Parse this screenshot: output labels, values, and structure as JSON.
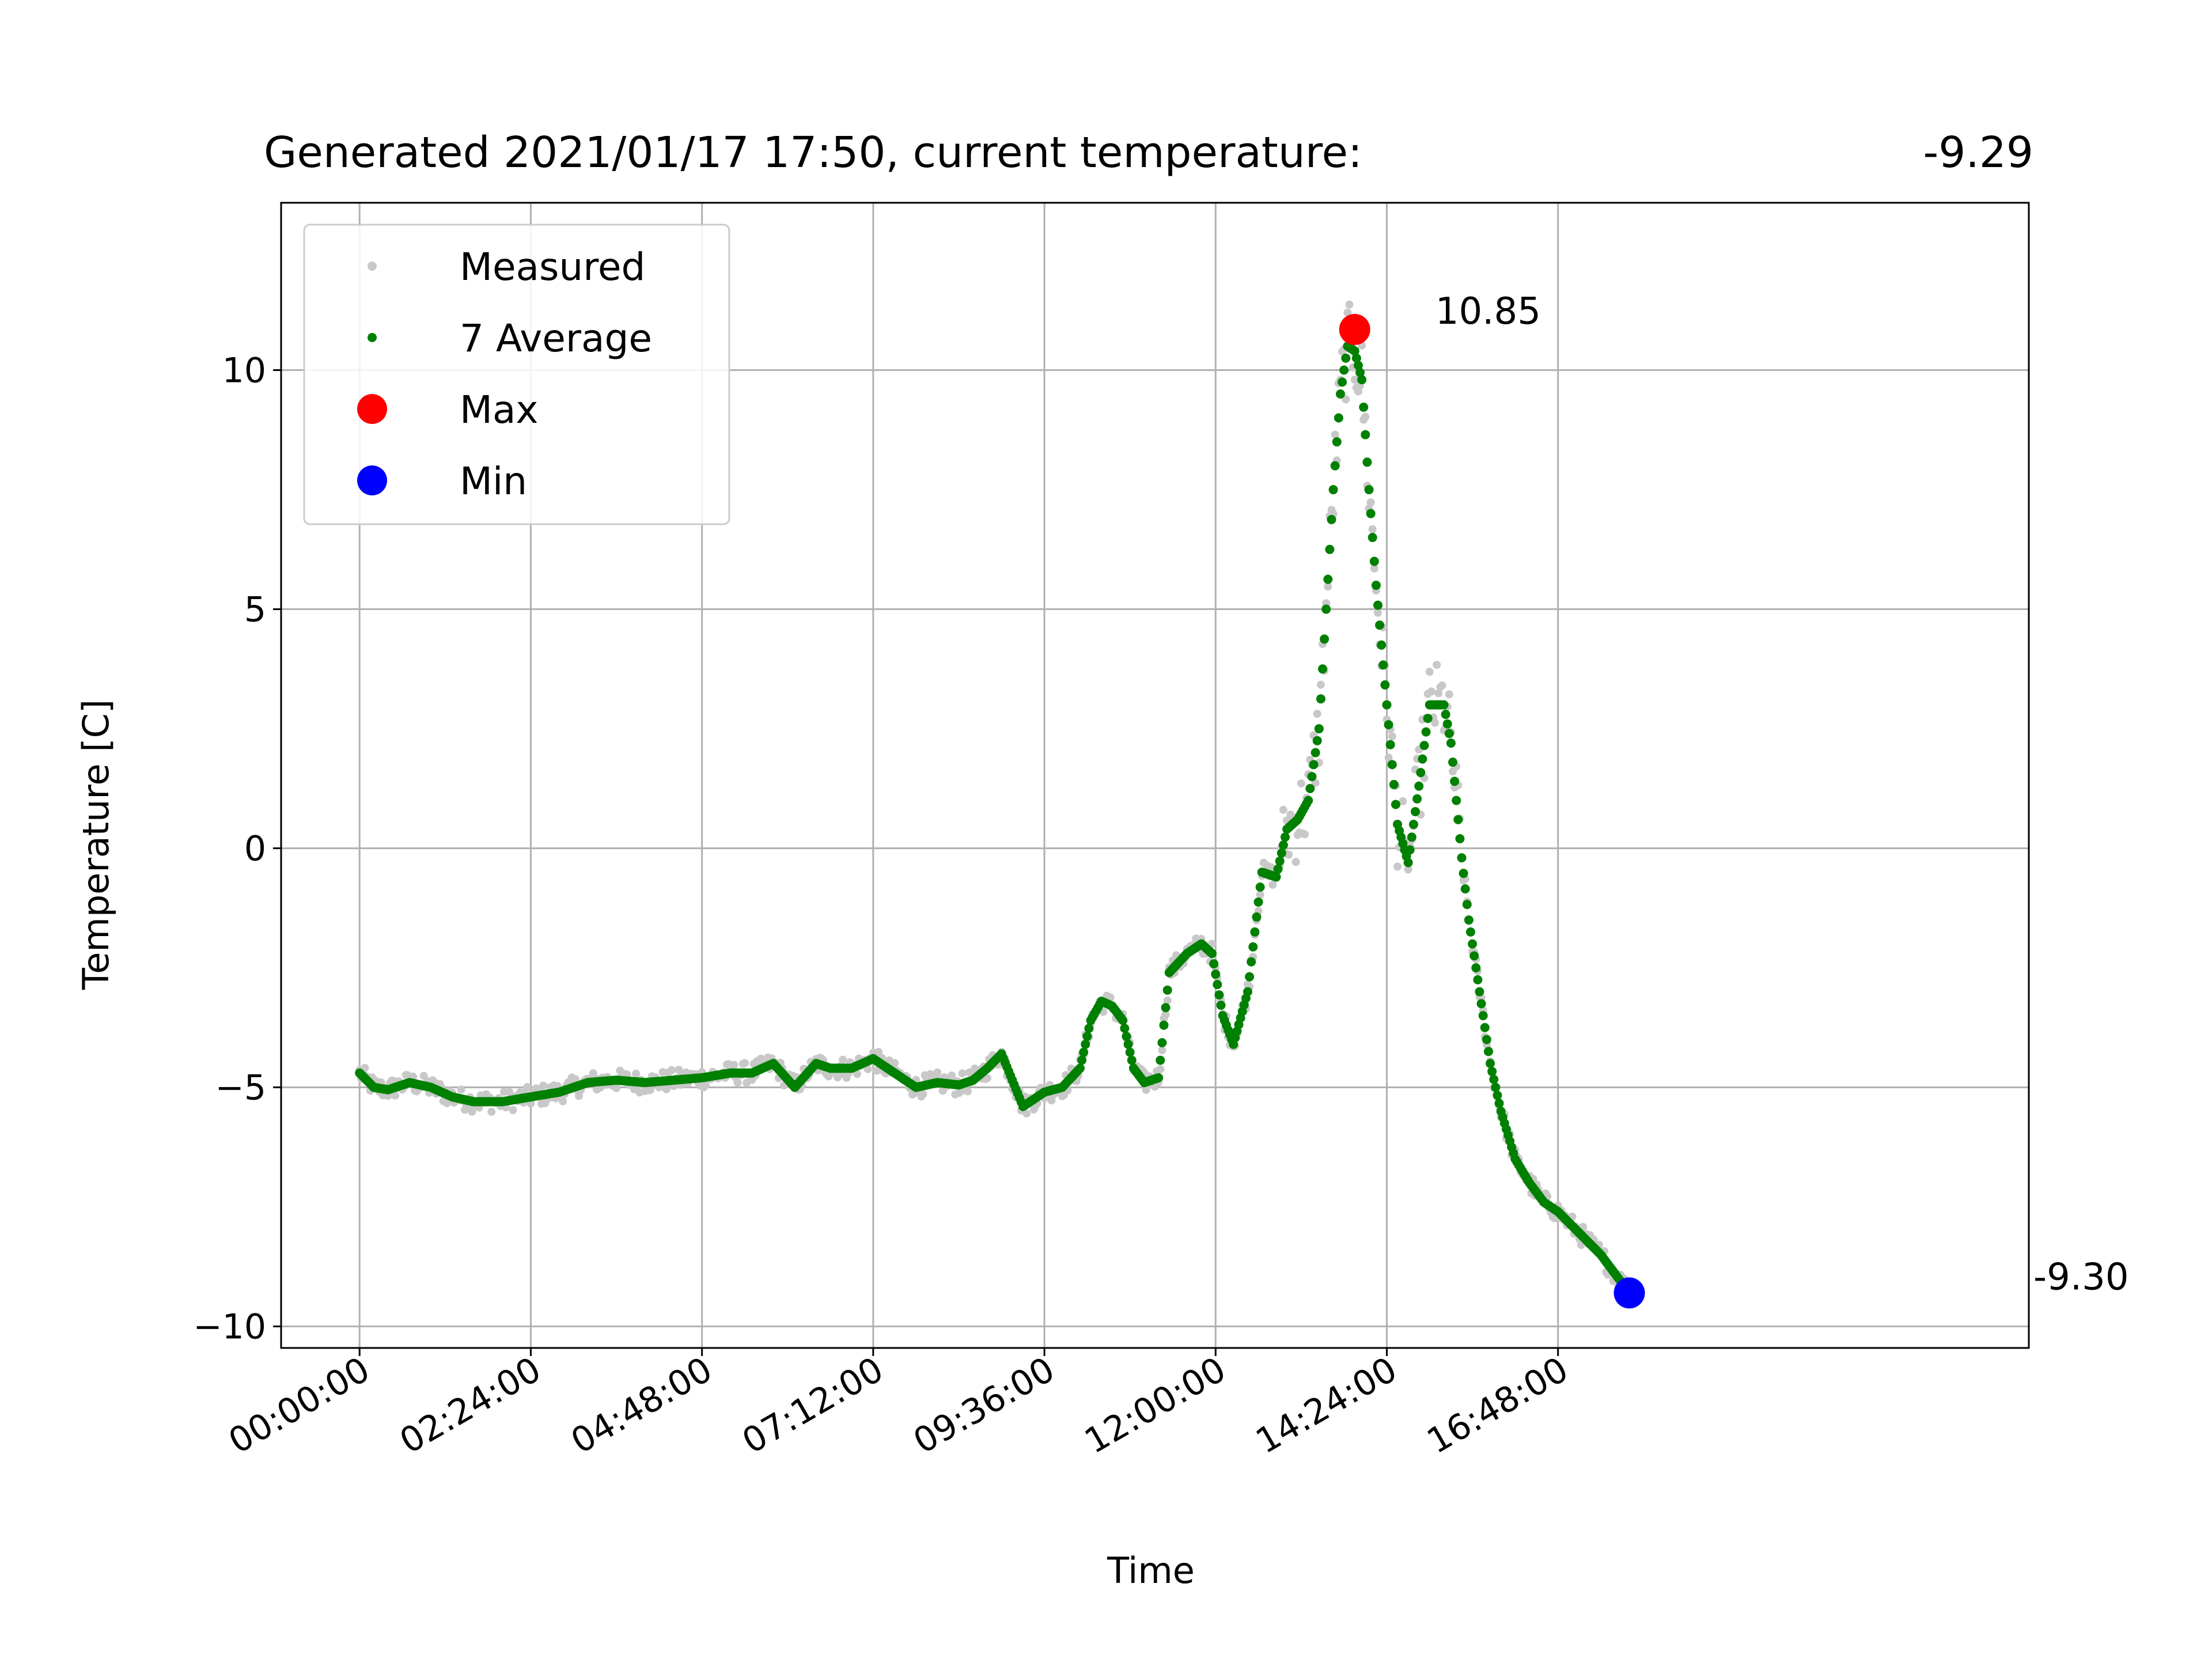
{
  "chart_data": {
    "type": "scatter",
    "title_left": "Generated 2021/01/17 17:50, current temperature:",
    "title_right": "-9.29",
    "xlabel": "Time",
    "ylabel": "Temperature [C]",
    "x_unit": "hours",
    "xlim": [
      -1.1,
      23.4
    ],
    "ylim": [
      -10.45,
      13.5
    ],
    "x_ticks": [
      0,
      2.4,
      4.8,
      7.2,
      9.6,
      12.0,
      14.4,
      16.8
    ],
    "x_tick_labels": [
      "00:00:00",
      "02:24:00",
      "04:48:00",
      "07:12:00",
      "09:36:00",
      "12:00:00",
      "14:24:00",
      "16:48:00"
    ],
    "y_ticks": [
      -10,
      -5,
      0,
      5,
      10
    ],
    "y_tick_labels": [
      "−10",
      "−5",
      "0",
      "5",
      "10"
    ],
    "grid": true,
    "legend_position": "top-left",
    "colors": {
      "measured": "#c8c8c8",
      "average": "#008000",
      "max": "#ff0000",
      "min": "#0000ff",
      "grid": "#b0b0b0"
    },
    "series": [
      {
        "name": "Measured",
        "marker": "small-dot",
        "color": "#c8c8c8"
      },
      {
        "name": "7 Average",
        "marker": "small-dot",
        "color": "#008000"
      },
      {
        "name": "Max",
        "marker": "large-dot",
        "color": "#ff0000"
      },
      {
        "name": "Min",
        "marker": "large-dot",
        "color": "#0000ff"
      }
    ],
    "average_curve": {
      "x": [
        0,
        0.2,
        0.4,
        0.7,
        1.0,
        1.3,
        1.6,
        2.0,
        2.4,
        2.8,
        3.2,
        3.6,
        4.0,
        4.4,
        4.8,
        5.0,
        5.2,
        5.5,
        5.8,
        6.1,
        6.4,
        6.6,
        6.9,
        7.2,
        7.5,
        7.8,
        8.1,
        8.4,
        8.6,
        8.8,
        9.0,
        9.3,
        9.6,
        9.85,
        10.1,
        10.25,
        10.4,
        10.55,
        10.7,
        10.85,
        11.0,
        11.2,
        11.35,
        11.6,
        11.8,
        11.95,
        12.1,
        12.25,
        12.45,
        12.65,
        12.85,
        13.0,
        13.15,
        13.3,
        13.45,
        13.55,
        13.65,
        13.75,
        13.85,
        13.95,
        14.05,
        14.15,
        14.25,
        14.4,
        14.55,
        14.7,
        14.85,
        15.0,
        15.1,
        15.2,
        15.3,
        15.45,
        15.55,
        15.7,
        15.85,
        16.0,
        16.2,
        16.4,
        16.6,
        16.8,
        17.0,
        17.2,
        17.4,
        17.6,
        17.8
      ],
      "y": [
        -4.7,
        -5.0,
        -5.05,
        -4.9,
        -5.0,
        -5.2,
        -5.3,
        -5.3,
        -5.2,
        -5.1,
        -4.9,
        -4.85,
        -4.9,
        -4.85,
        -4.8,
        -4.75,
        -4.7,
        -4.7,
        -4.5,
        -5.0,
        -4.5,
        -4.6,
        -4.6,
        -4.4,
        -4.7,
        -5.0,
        -4.9,
        -4.95,
        -4.85,
        -4.6,
        -4.3,
        -5.4,
        -5.1,
        -5.0,
        -4.6,
        -3.6,
        -3.2,
        -3.3,
        -3.6,
        -4.6,
        -4.9,
        -4.8,
        -2.6,
        -2.2,
        -2.0,
        -2.2,
        -3.5,
        -4.1,
        -3.0,
        -0.5,
        -0.6,
        0.4,
        0.6,
        1.0,
        2.5,
        5.0,
        7.5,
        9.5,
        10.5,
        10.4,
        9.8,
        7.5,
        5.5,
        3.0,
        0.5,
        -0.3,
        1.3,
        3.0,
        3.0,
        3.0,
        2.2,
        -0.2,
        -1.5,
        -3.0,
        -4.5,
        -5.5,
        -6.5,
        -7.0,
        -7.4,
        -7.6,
        -7.9,
        -8.2,
        -8.5,
        -8.9,
        -9.3
      ]
    },
    "max_point": {
      "x": 13.95,
      "y": 10.85,
      "label": "10.85"
    },
    "min_point": {
      "x": 17.8,
      "y": -9.3,
      "label": "-9.30"
    }
  }
}
